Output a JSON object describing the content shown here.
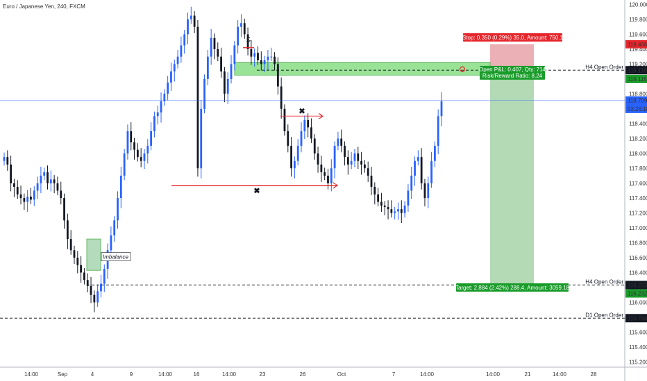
{
  "chart_data": {
    "type": "candlestick",
    "title": "Euro / Japanese Yen, 240, FXCM",
    "y_range": [
      115.13,
      120.06
    ],
    "y_ticks": [
      "120.000",
      "119.800",
      "119.600",
      "119.400",
      "119.200",
      "119.000",
      "118.800",
      "118.600",
      "118.400",
      "118.200",
      "118.000",
      "117.800",
      "117.600",
      "117.400",
      "117.200",
      "117.000",
      "116.800",
      "116.600",
      "116.400",
      "116.200",
      "116.000",
      "115.800",
      "115.600",
      "115.400",
      "115.200"
    ],
    "x_ticks": [
      "14:00",
      "Sep",
      "4",
      "9",
      "14:00",
      "16",
      "14:00",
      "23",
      "26",
      "Oct",
      "7",
      "14:00",
      "14:00",
      "21",
      "14:00",
      "28"
    ],
    "price_labels": {
      "stop": "119.466",
      "entry_a": "119.118",
      "entry_b": "119.116",
      "current": "118.709",
      "countdown": "03:26:18",
      "target_a": "116.233",
      "target_b": "116.232",
      "d1": "115.788"
    },
    "order_lines": [
      {
        "label": "H4 Open Order",
        "price": 119.118
      },
      {
        "label": "H4 Open Order",
        "price": 116.233
      },
      {
        "label": "D1 Open Order",
        "price": 115.788
      }
    ],
    "position": {
      "stop_text": "Stop: 0.350 (0.29%) 35.0, Amount: 750.1",
      "open_text": "Open P&L: 0.407, Qty: 714",
      "rr_text": "Risk/Reward Ratio: 8.24",
      "target_text": "Target: 2.884 (2.42%) 288.4, Amount: 3059.18",
      "entry": 119.118,
      "stop": 119.466,
      "target": 116.233
    },
    "annotations": {
      "imbalance": "Imbalance",
      "pound": "£",
      "cross": "✖"
    },
    "candles_close": [
      117.95,
      117.85,
      117.6,
      117.55,
      117.45,
      117.4,
      117.35,
      117.42,
      117.38,
      117.5,
      117.6,
      117.7,
      117.75,
      117.6,
      117.65,
      117.6,
      117.5,
      117.4,
      117.1,
      116.85,
      116.7,
      116.6,
      116.5,
      116.4,
      116.3,
      116.22,
      116.1,
      116.0,
      116.15,
      116.25,
      116.45,
      116.7,
      116.9,
      117.1,
      117.4,
      117.7,
      118.0,
      118.3,
      118.15,
      118.05,
      117.95,
      117.9,
      118.0,
      118.1,
      118.3,
      118.5,
      118.55,
      118.7,
      118.8,
      118.95,
      119.1,
      119.2,
      119.3,
      119.45,
      119.6,
      119.8,
      119.85,
      119.7,
      117.8,
      118.6,
      119.0,
      119.3,
      119.55,
      119.4,
      119.3,
      119.1,
      118.8,
      119.0,
      119.2,
      119.45,
      119.7,
      119.75,
      119.6,
      119.4,
      119.3,
      119.35,
      119.25,
      119.2,
      119.25,
      119.3,
      119.3,
      119.2,
      118.9,
      118.6,
      118.3,
      118.1,
      117.8,
      117.9,
      118.1,
      118.3,
      118.45,
      118.35,
      118.2,
      118.0,
      117.85,
      117.75,
      117.7,
      117.6,
      117.8,
      118.1,
      118.2,
      118.1,
      117.95,
      117.85,
      117.9,
      118.0,
      117.9,
      117.85,
      117.8,
      117.7,
      117.55,
      117.45,
      117.35,
      117.3,
      117.28,
      117.25,
      117.2,
      117.22,
      117.25,
      117.2,
      117.3,
      117.5,
      117.7,
      117.9,
      117.95,
      117.6,
      117.4,
      117.6,
      117.9,
      118.1,
      118.5,
      118.7
    ],
    "colors": {
      "up": "#2962ff",
      "down": "#131722",
      "stop_zone": "#e8a2a8",
      "target_zone": "#a6d4a8",
      "green_box": "#8ee08b",
      "red_line": "#e5272d",
      "current_price": "#2962ff",
      "label_green": "#1a9c2b",
      "label_red": "#e5272d"
    }
  }
}
